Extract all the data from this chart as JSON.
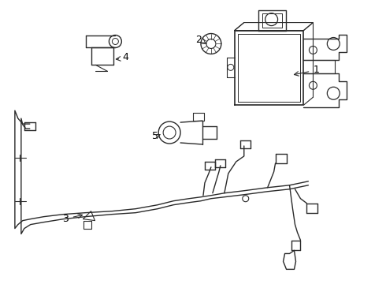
{
  "background_color": "#ffffff",
  "line_color": "#2a2a2a",
  "label_color": "#000000",
  "fig_width": 4.9,
  "fig_height": 3.6,
  "dpi": 100
}
